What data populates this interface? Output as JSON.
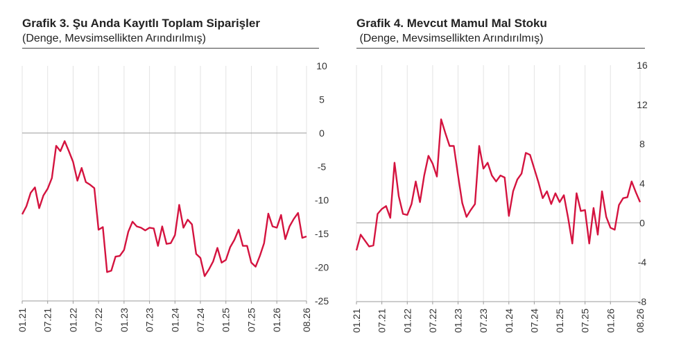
{
  "colors": {
    "line": "#d4133f",
    "grid": "#e3e3e3",
    "axis": "#9a9a9a"
  },
  "chart_data": [
    {
      "type": "line",
      "title": "Grafik 3. Şu Anda Kayıtlı Toplam Siparişler",
      "subtitle": "(Denge, Mevsimsellikten Arındırılmış)",
      "ylim": [
        -25,
        10
      ],
      "yticks": [
        10,
        5,
        0,
        -5,
        -10,
        -15,
        -20,
        -25
      ],
      "xtick_labels": [
        "01.21",
        "07.21",
        "01.22",
        "07.22",
        "01.23",
        "07.23",
        "01.24",
        "07.24",
        "01.25",
        "07.25",
        "01.26",
        "08.26"
      ],
      "grid": "vertical",
      "series": [
        {
          "values": [
            -12.1,
            -10.9,
            -8.9,
            -8.1,
            -11.2,
            -9.3,
            -8.3,
            -6.7,
            -1.9,
            -2.7,
            -1.2,
            -2.7,
            -4.3,
            -7.1,
            -5.2,
            -7.3,
            -7.7,
            -8.2,
            -14.4,
            -14.0,
            -20.7,
            -20.5,
            -18.4,
            -18.3,
            -17.4,
            -14.7,
            -13.2,
            -13.9,
            -14.1,
            -14.5,
            -14.1,
            -14.2,
            -16.8,
            -13.9,
            -16.5,
            -16.4,
            -15.2,
            -10.7,
            -14.1,
            -12.9,
            -13.6,
            -18.0,
            -18.6,
            -21.3,
            -20.3,
            -19.1,
            -17.1,
            -19.3,
            -18.9,
            -17.0,
            -15.9,
            -14.4,
            -16.8,
            -16.8,
            -19.3,
            -19.9,
            -18.3,
            -16.4,
            -12.0,
            -13.9,
            -14.1,
            -12.2,
            -15.8,
            -13.9,
            -12.8,
            -11.9,
            -15.6,
            -15.4
          ]
        }
      ]
    },
    {
      "type": "line",
      "title": "Grafik 4. Mevcut Mamul Mal Stoku",
      "subtitle": " (Denge, Mevsimsellikten Arındırılmış)",
      "ylim": [
        -8,
        16
      ],
      "yticks": [
        16,
        12,
        8,
        4,
        0,
        -4,
        -8
      ],
      "xtick_labels": [
        "01.21",
        "07.21",
        "01.22",
        "07.22",
        "01.23",
        "07.23",
        "01.24",
        "07.24",
        "01.25",
        "07.25",
        "01.26",
        "08.26"
      ],
      "grid": "vertical",
      "series": [
        {
          "values": [
            -2.8,
            -1.2,
            -1.8,
            -2.4,
            -2.3,
            0.9,
            1.4,
            1.7,
            0.5,
            6.1,
            2.7,
            0.9,
            0.8,
            1.9,
            4.2,
            2.1,
            4.8,
            6.8,
            6.0,
            4.7,
            10.5,
            9.1,
            7.8,
            7.8,
            4.8,
            2.0,
            0.6,
            1.3,
            1.9,
            7.8,
            5.5,
            6.1,
            4.8,
            4.2,
            4.8,
            4.6,
            0.7,
            3.2,
            4.4,
            5.0,
            7.1,
            6.9,
            5.5,
            4.1,
            2.5,
            3.2,
            1.9,
            3.0,
            2.1,
            2.8,
            0.5,
            -2.1,
            3.0,
            1.2,
            1.3,
            -2.1,
            1.5,
            -1.2,
            3.2,
            0.6,
            -0.5,
            -0.7,
            1.8,
            2.5,
            2.6,
            4.2,
            3.1,
            2.1
          ]
        }
      ]
    }
  ]
}
